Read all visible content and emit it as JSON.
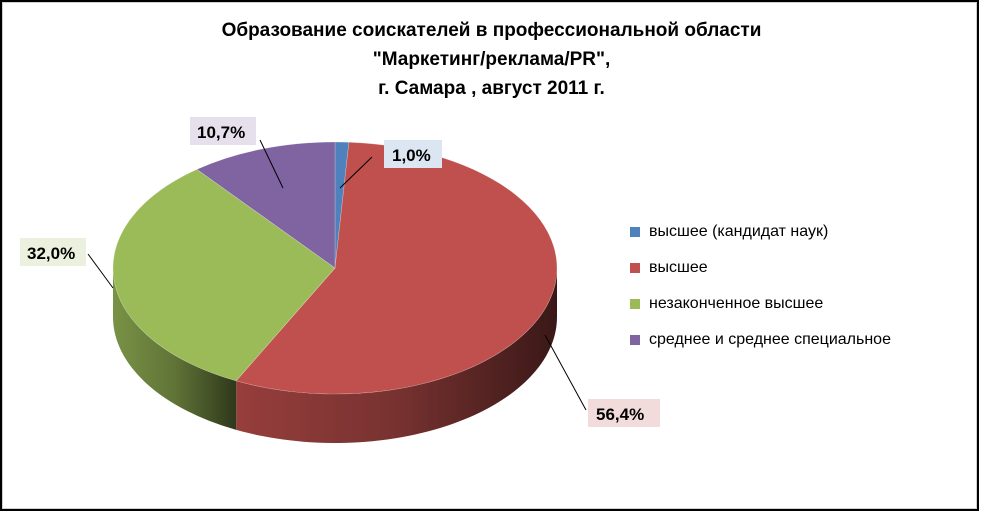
{
  "chart_data": {
    "type": "pie",
    "title_lines": [
      "Образование соискателей в профессиональной области",
      "\"Маркетинг/реклама/PR\",",
      "г. Самара , август 2011 г."
    ],
    "categories": [
      "высшее (кандидат наук)",
      "высшее",
      "незаконченное высшее",
      "среднее и среднее специальное"
    ],
    "values": [
      1.0,
      56.4,
      32.0,
      10.7
    ],
    "data_labels": [
      "1,0%",
      "56,4%",
      "32,0%",
      "10,7%"
    ],
    "colors": [
      "#4F81BD",
      "#C0504D",
      "#9BBB59",
      "#8064A2"
    ],
    "legend_position": "right",
    "style": "3d"
  }
}
